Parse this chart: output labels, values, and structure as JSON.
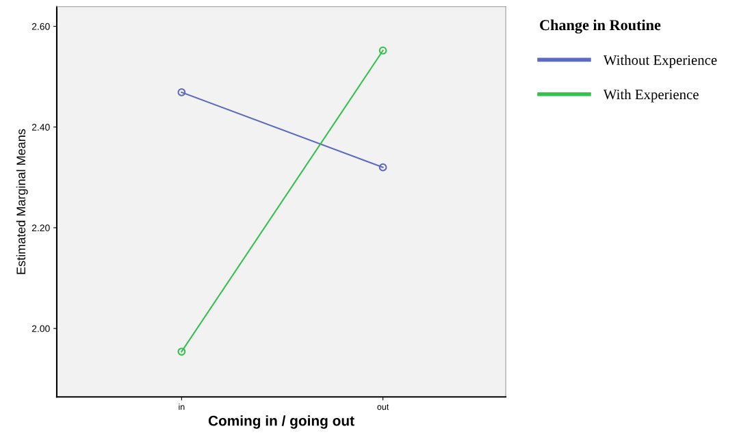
{
  "chart_data": {
    "type": "line",
    "xlabel": "Coming in / going out",
    "ylabel": "Estimated Marginal Means",
    "legend_title": "Change in Routine",
    "categories": [
      "in",
      "out"
    ],
    "series": [
      {
        "name": "Without Experience",
        "color": "#5c6ac4",
        "values": [
          2.469,
          2.32
        ]
      },
      {
        "name": "With Experience",
        "color": "#33c24a",
        "values": [
          1.954,
          2.552
        ]
      }
    ],
    "ylim": [
      1.864,
      2.639
    ],
    "yticks": [
      {
        "value": 2.0,
        "label": "2.00"
      },
      {
        "value": 2.2,
        "label": "2.20"
      },
      {
        "value": 2.4,
        "label": "2.40"
      },
      {
        "value": 2.6,
        "label": "2.60"
      }
    ],
    "grid": false,
    "legend": "right",
    "marker": "circle",
    "line_style": "solid"
  }
}
